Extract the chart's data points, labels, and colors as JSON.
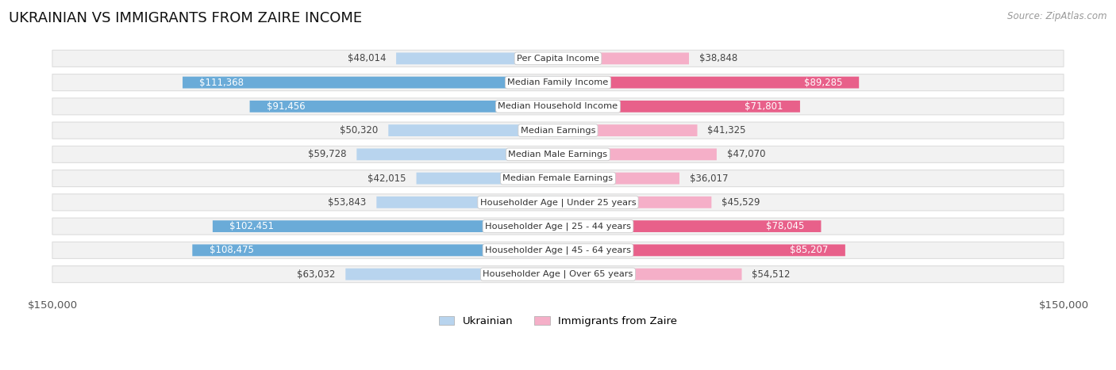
{
  "title": "UKRAINIAN VS IMMIGRANTS FROM ZAIRE INCOME",
  "source": "Source: ZipAtlas.com",
  "categories": [
    "Per Capita Income",
    "Median Family Income",
    "Median Household Income",
    "Median Earnings",
    "Median Male Earnings",
    "Median Female Earnings",
    "Householder Age | Under 25 years",
    "Householder Age | 25 - 44 years",
    "Householder Age | 45 - 64 years",
    "Householder Age | Over 65 years"
  ],
  "ukrainian_values": [
    48014,
    111368,
    91456,
    50320,
    59728,
    42015,
    53843,
    102451,
    108475,
    63032
  ],
  "zaire_values": [
    38848,
    89285,
    71801,
    41325,
    47070,
    36017,
    45529,
    78045,
    85207,
    54512
  ],
  "ukrainian_labels": [
    "$48,014",
    "$111,368",
    "$91,456",
    "$50,320",
    "$59,728",
    "$42,015",
    "$53,843",
    "$102,451",
    "$108,475",
    "$63,032"
  ],
  "zaire_labels": [
    "$38,848",
    "$89,285",
    "$71,801",
    "$41,325",
    "$47,070",
    "$36,017",
    "$45,529",
    "$78,045",
    "$85,207",
    "$54,512"
  ],
  "max_value": 150000,
  "ukr_color_light": "#b8d4ee",
  "ukr_color_dark": "#6aabd8",
  "zaire_color_light": "#f5afc8",
  "zaire_color_dark": "#e8608a",
  "row_bg_color": "#f2f2f2",
  "row_border_color": "#dddddd",
  "inside_label_threshold": 65000,
  "title_fontsize": 13,
  "legend_ukrainian": "Ukrainian",
  "legend_zaire": "Immigrants from Zaire",
  "x_tick_label_left": "$150,000",
  "x_tick_label_right": "$150,000"
}
